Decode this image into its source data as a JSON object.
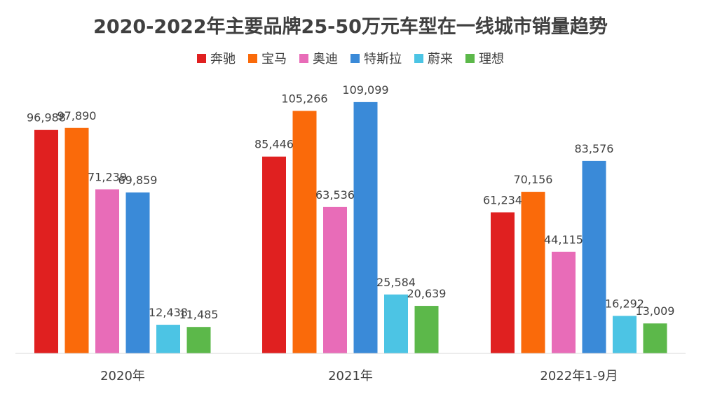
{
  "chart_data": {
    "type": "bar",
    "title": "2020-2022年主要品牌25-50万元车型在一线城市销量趋势",
    "categories": [
      "2020年",
      "2021年",
      "2022年1-9月"
    ],
    "series": [
      {
        "name": "奔驰",
        "color": "#e02020",
        "values": [
          96988,
          85446,
          61234
        ]
      },
      {
        "name": "宝马",
        "color": "#fa6a0a",
        "values": [
          97890,
          105266,
          70156
        ]
      },
      {
        "name": "奥迪",
        "color": "#e86cb8",
        "values": [
          71239,
          63536,
          44115
        ]
      },
      {
        "name": "特斯拉",
        "color": "#3a8ad8",
        "values": [
          69859,
          109099,
          83576
        ]
      },
      {
        "name": "蔚来",
        "color": "#4cc4e4",
        "values": [
          12438,
          25584,
          16292
        ]
      },
      {
        "name": "理想",
        "color": "#5cb84a",
        "values": [
          11485,
          20639,
          13009
        ]
      }
    ],
    "value_labels": [
      [
        "96,988",
        "85,446",
        "61,234"
      ],
      [
        "97,890",
        "105,266",
        "70,156"
      ],
      [
        "71,239",
        "63,536",
        "44,115"
      ],
      [
        "69,859",
        "109,099",
        "83,576"
      ],
      [
        "12,438",
        "25,584",
        "16,292"
      ],
      [
        "11,485",
        "20,639",
        "13,009"
      ]
    ],
    "ylim": [
      0,
      120000
    ],
    "grid": false,
    "legend_position": "top"
  }
}
